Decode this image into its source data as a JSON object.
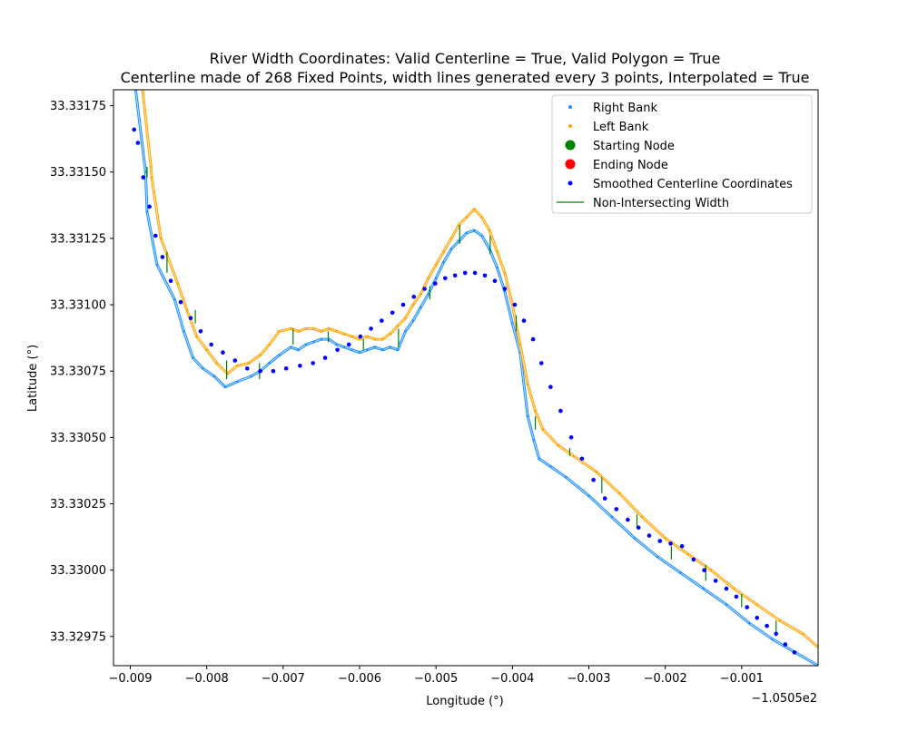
{
  "chart_data": {
    "type": "scatter",
    "title": "River Width Coordinates: Valid Centerline = True, Valid Polygon = True",
    "subtitle": "Centerline made of 268 Fixed Points, width lines generated every 3 points, Interpolated = True",
    "xlabel": "Longitude (°)",
    "ylabel": "Latitude (°)",
    "x_offset_label": "−1.0505e2",
    "xlim": [
      -0.00922,
      0.0
    ],
    "ylim": [
      33.32964,
      33.33181
    ],
    "x_ticks": [
      -0.009,
      -0.008,
      -0.007,
      -0.006,
      -0.005,
      -0.004,
      -0.003,
      -0.002,
      -0.001
    ],
    "x_tick_labels": [
      "−0.009",
      "−0.008",
      "−0.007",
      "−0.006",
      "−0.005",
      "−0.004",
      "−0.003",
      "−0.002",
      "−0.001"
    ],
    "y_ticks": [
      33.32975,
      33.33,
      33.33025,
      33.3305,
      33.33075,
      33.331,
      33.33125,
      33.3315,
      33.33175
    ],
    "y_tick_labels": [
      "33.32975",
      "33.33000",
      "33.33025",
      "33.33050",
      "33.33075",
      "33.33100",
      "33.33125",
      "33.33150",
      "33.33175"
    ],
    "legend_position": "upper right",
    "legend": [
      {
        "label": "Right Bank",
        "marker": "small-dot",
        "color": "#1e90ff"
      },
      {
        "label": "Left Bank",
        "marker": "small-dot",
        "color": "#ffa500"
      },
      {
        "label": "Starting Node",
        "marker": "large-dot",
        "color": "#008000"
      },
      {
        "label": "Ending Node",
        "marker": "large-dot",
        "color": "#ff0000"
      },
      {
        "label": "Smoothed Centerline Coordinates",
        "marker": "dot",
        "color": "#0000ff"
      },
      {
        "label": "Non-Intersecting Width",
        "marker": "line",
        "color": "#008000"
      }
    ],
    "series": [
      {
        "name": "Right Bank",
        "color": "#1e90ff",
        "x": [
          -0.00893,
          -0.0088,
          -0.00878,
          -0.00865,
          -0.00842,
          -0.0083,
          -0.00818,
          -0.00805,
          -0.0079,
          -0.00776,
          -0.0076,
          -0.00742,
          -0.0073,
          -0.00718,
          -0.00705,
          -0.0069,
          -0.0068,
          -0.0067,
          -0.0066,
          -0.0065,
          -0.0064,
          -0.0063,
          -0.0062,
          -0.0061,
          -0.006,
          -0.0059,
          -0.0058,
          -0.0057,
          -0.0056,
          -0.0055,
          -0.0054,
          -0.0053,
          -0.0052,
          -0.0051,
          -0.005,
          -0.0049,
          -0.0048,
          -0.0047,
          -0.0046,
          -0.0045,
          -0.0044,
          -0.0043,
          -0.0042,
          -0.0041,
          -0.004,
          -0.0039,
          -0.0038,
          -0.00372,
          -0.00365,
          -0.0035,
          -0.0033,
          -0.003,
          -0.0027,
          -0.0024,
          -0.0021,
          -0.0018,
          -0.0015,
          -0.0012,
          -0.0009,
          -0.0006,
          -0.0003,
          0.0
        ],
        "y": [
          33.33181,
          33.3315,
          33.33135,
          33.33115,
          33.33102,
          33.3309,
          33.3308,
          33.33076,
          33.33073,
          33.33069,
          33.33071,
          33.33073,
          33.33075,
          33.33078,
          33.33081,
          33.33084,
          33.33083,
          33.33085,
          33.33086,
          33.33087,
          33.33087,
          33.33085,
          33.33084,
          33.33083,
          33.33082,
          33.33083,
          33.33084,
          33.33083,
          33.33084,
          33.33083,
          33.3309,
          33.33094,
          33.33099,
          33.33104,
          33.3311,
          33.33116,
          33.33121,
          33.33124,
          33.33127,
          33.33128,
          33.33126,
          33.33121,
          33.33114,
          33.33105,
          33.33093,
          33.33082,
          33.33058,
          33.33049,
          33.33042,
          33.33039,
          33.33035,
          33.33028,
          33.3302,
          33.33012,
          33.33005,
          33.32999,
          33.32993,
          33.32987,
          33.3298,
          33.32974,
          33.32969,
          33.32964
        ]
      },
      {
        "name": "Left Bank",
        "color": "#ffa500",
        "x": [
          -0.00884,
          -0.00873,
          -0.00872,
          -0.0086,
          -0.00838,
          -0.00826,
          -0.00813,
          -0.008,
          -0.00787,
          -0.00773,
          -0.0076,
          -0.00745,
          -0.0073,
          -0.00718,
          -0.00705,
          -0.0069,
          -0.0068,
          -0.0067,
          -0.0066,
          -0.0065,
          -0.0064,
          -0.0063,
          -0.0062,
          -0.0061,
          -0.006,
          -0.0059,
          -0.0058,
          -0.0057,
          -0.0056,
          -0.0055,
          -0.0054,
          -0.0053,
          -0.0052,
          -0.0051,
          -0.005,
          -0.0049,
          -0.0048,
          -0.0047,
          -0.0046,
          -0.0045,
          -0.0044,
          -0.0043,
          -0.0042,
          -0.0041,
          -0.004,
          -0.0039,
          -0.0038,
          -0.0037,
          -0.0036,
          -0.0034,
          -0.0032,
          -0.0029,
          -0.0026,
          -0.0023,
          -0.002,
          -0.0017,
          -0.0014,
          -0.0011,
          -0.0008,
          -0.0005,
          -0.0002,
          0.0
        ],
        "y": [
          33.33181,
          33.33152,
          33.33148,
          33.33125,
          33.33108,
          33.33098,
          33.33088,
          33.33083,
          33.33078,
          33.33074,
          33.33077,
          33.33078,
          33.33081,
          33.33085,
          33.3309,
          33.33091,
          33.3309,
          33.33091,
          33.33091,
          33.3309,
          33.33091,
          33.3309,
          33.33089,
          33.33088,
          33.33087,
          33.33088,
          33.33087,
          33.33087,
          33.33089,
          33.33092,
          33.33095,
          33.331,
          33.33104,
          33.3311,
          33.33115,
          33.3312,
          33.33125,
          33.3313,
          33.33133,
          33.33136,
          33.33133,
          33.33128,
          33.3312,
          33.33112,
          33.331,
          33.33085,
          33.3307,
          33.3306,
          33.33053,
          33.33047,
          33.33043,
          33.33037,
          33.33029,
          33.3302,
          33.33012,
          33.33006,
          33.33,
          33.32993,
          33.32987,
          33.32981,
          33.32976,
          33.32971
        ]
      },
      {
        "name": "Smoothed Centerline Coordinates",
        "color": "#0000ff",
        "x": [
          -0.00895,
          -0.0089,
          -0.00883,
          -0.00875,
          -0.00867,
          -0.00858,
          -0.00847,
          -0.00834,
          -0.00821,
          -0.00808,
          -0.00794,
          -0.00779,
          -0.00763,
          -0.00747,
          -0.0073,
          -0.00713,
          -0.00696,
          -0.00678,
          -0.00661,
          -0.00645,
          -0.00629,
          -0.00614,
          -0.00599,
          -0.00585,
          -0.00571,
          -0.00557,
          -0.00543,
          -0.00529,
          -0.00515,
          -0.00501,
          -0.00488,
          -0.00475,
          -0.00462,
          -0.00449,
          -0.00436,
          -0.00423,
          -0.0041,
          -0.00397,
          -0.00385,
          -0.00373,
          -0.00362,
          -0.0035,
          -0.00337,
          -0.00323,
          -0.00309,
          -0.00294,
          -0.00279,
          -0.00264,
          -0.00249,
          -0.00235,
          -0.00221,
          -0.00207,
          -0.00193,
          -0.00178,
          -0.00163,
          -0.00149,
          -0.00134,
          -0.0012,
          -0.00107,
          -0.00093,
          -0.0008,
          -0.00067,
          -0.00055,
          -0.00043,
          -0.00031
        ],
        "y": [
          33.33166,
          33.33161,
          33.33148,
          33.33137,
          33.33126,
          33.33118,
          33.33109,
          33.33101,
          33.33095,
          33.3309,
          33.33085,
          33.33082,
          33.33079,
          33.33076,
          33.33075,
          33.33075,
          33.33076,
          33.33077,
          33.33078,
          33.3308,
          33.33083,
          33.33085,
          33.33088,
          33.33091,
          33.33094,
          33.33097,
          33.331,
          33.33103,
          33.33106,
          33.33108,
          33.3311,
          33.33111,
          33.33112,
          33.33112,
          33.33111,
          33.33109,
          33.33106,
          33.331,
          33.33094,
          33.33087,
          33.33078,
          33.33069,
          33.3306,
          33.3305,
          33.33042,
          33.33034,
          33.33027,
          33.33023,
          33.33019,
          33.33016,
          33.33013,
          33.33011,
          33.3301,
          33.33009,
          33.33004,
          33.33,
          33.32996,
          33.32993,
          33.3299,
          33.32986,
          33.32982,
          33.32979,
          33.32976,
          33.32972,
          33.32969
        ]
      }
    ],
    "width_lines": [
      {
        "x": -0.00878,
        "y1": 33.33148,
        "y2": 33.33152
      },
      {
        "x": -0.00852,
        "y1": 33.33112,
        "y2": 33.3312
      },
      {
        "x": -0.00815,
        "y1": 33.33093,
        "y2": 33.33098
      },
      {
        "x": -0.00774,
        "y1": 33.33072,
        "y2": 33.33079
      },
      {
        "x": -0.00731,
        "y1": 33.33072,
        "y2": 33.33078
      },
      {
        "x": -0.00687,
        "y1": 33.33085,
        "y2": 33.33091
      },
      {
        "x": -0.00641,
        "y1": 33.33086,
        "y2": 33.3309
      },
      {
        "x": -0.00595,
        "y1": 33.33083,
        "y2": 33.33087
      },
      {
        "x": -0.00549,
        "y1": 33.33084,
        "y2": 33.33091
      },
      {
        "x": -0.00508,
        "y1": 33.33102,
        "y2": 33.33107
      },
      {
        "x": -0.00469,
        "y1": 33.33123,
        "y2": 33.3313
      },
      {
        "x": -0.00429,
        "y1": 33.33119,
        "y2": 33.33126
      },
      {
        "x": -0.00395,
        "y1": 33.3309,
        "y2": 33.33096
      },
      {
        "x": -0.0037,
        "y1": 33.33053,
        "y2": 33.33058
      },
      {
        "x": -0.00325,
        "y1": 33.33043,
        "y2": 33.33046
      },
      {
        "x": -0.00283,
        "y1": 33.33029,
        "y2": 33.33035
      },
      {
        "x": -0.00237,
        "y1": 33.33016,
        "y2": 33.33021
      },
      {
        "x": -0.00192,
        "y1": 33.33004,
        "y2": 33.33009
      },
      {
        "x": -0.00147,
        "y1": 33.32996,
        "y2": 33.33002
      },
      {
        "x": -0.001,
        "y1": 33.32986,
        "y2": 33.32991
      },
      {
        "x": -0.00055,
        "y1": 33.32976,
        "y2": 33.32981
      }
    ]
  }
}
